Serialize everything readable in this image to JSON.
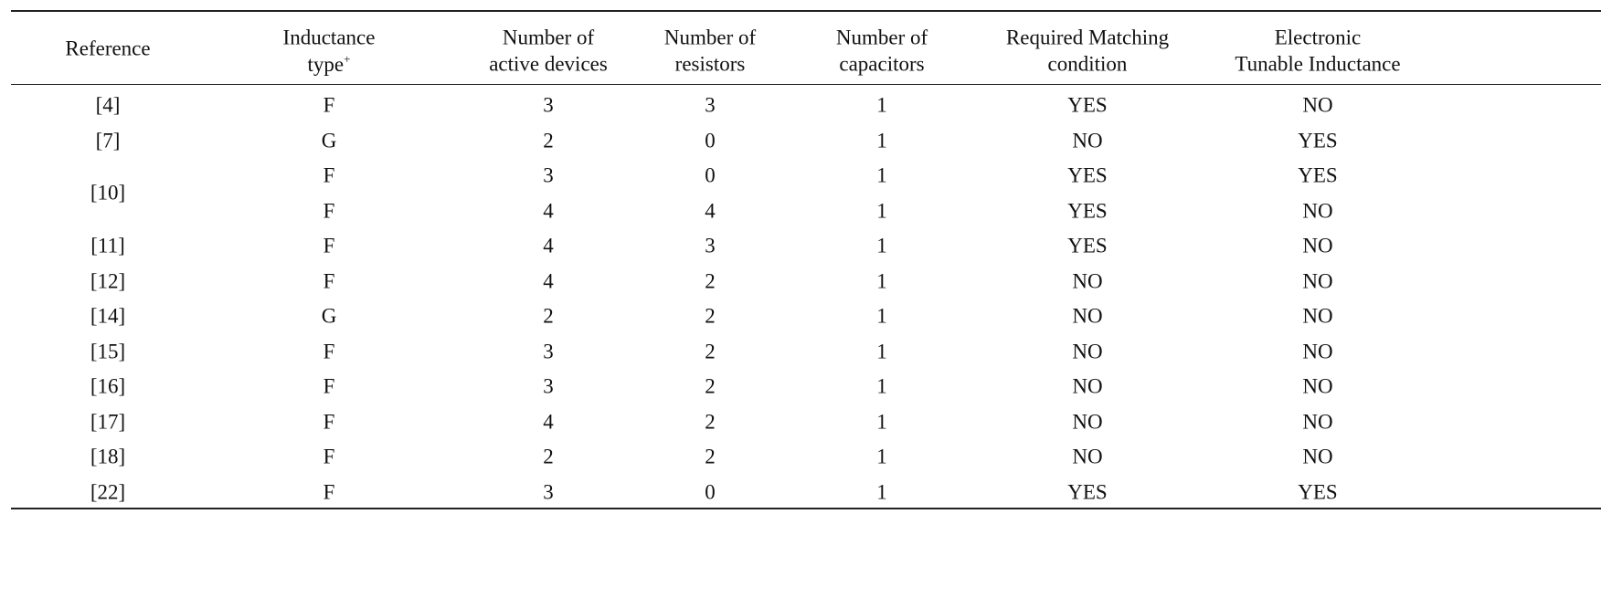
{
  "table": {
    "columns": [
      {
        "lines": [
          "Reference"
        ]
      },
      {
        "lines": [
          "Inductance",
          "type"
        ],
        "sup": "+"
      },
      {
        "lines": [
          "Number of",
          "active devices"
        ]
      },
      {
        "lines": [
          "Number of",
          "resistors"
        ]
      },
      {
        "lines": [
          "Number of",
          "capacitors"
        ]
      },
      {
        "lines": [
          "Required Matching",
          "condition"
        ]
      },
      {
        "lines": [
          "Electronic",
          "Tunable Inductance"
        ]
      }
    ],
    "rows": [
      {
        "reference": "[4]",
        "cells": [
          [
            "F",
            3,
            3,
            1,
            "YES",
            "NO"
          ]
        ]
      },
      {
        "reference": "[7]",
        "cells": [
          [
            "G",
            2,
            0,
            1,
            "NO",
            "YES"
          ]
        ]
      },
      {
        "reference": "[10]",
        "cells": [
          [
            "F",
            3,
            0,
            1,
            "YES",
            "YES"
          ],
          [
            "F",
            4,
            4,
            1,
            "YES",
            "NO"
          ]
        ]
      },
      {
        "reference": "[11]",
        "cells": [
          [
            "F",
            4,
            3,
            1,
            "YES",
            "NO"
          ]
        ]
      },
      {
        "reference": "[12]",
        "cells": [
          [
            "F",
            4,
            2,
            1,
            "NO",
            "NO"
          ]
        ]
      },
      {
        "reference": "[14]",
        "cells": [
          [
            "G",
            2,
            2,
            1,
            "NO",
            "NO"
          ]
        ]
      },
      {
        "reference": "[15]",
        "cells": [
          [
            "F",
            3,
            2,
            1,
            "NO",
            "NO"
          ]
        ]
      },
      {
        "reference": "[16]",
        "cells": [
          [
            "F",
            3,
            2,
            1,
            "NO",
            "NO"
          ]
        ]
      },
      {
        "reference": "[17]",
        "cells": [
          [
            "F",
            4,
            2,
            1,
            "NO",
            "NO"
          ]
        ]
      },
      {
        "reference": "[18]",
        "cells": [
          [
            "F",
            2,
            2,
            1,
            "NO",
            "NO"
          ]
        ]
      },
      {
        "reference": "[22]",
        "cells": [
          [
            "F",
            3,
            0,
            1,
            "YES",
            "YES"
          ]
        ]
      }
    ]
  }
}
